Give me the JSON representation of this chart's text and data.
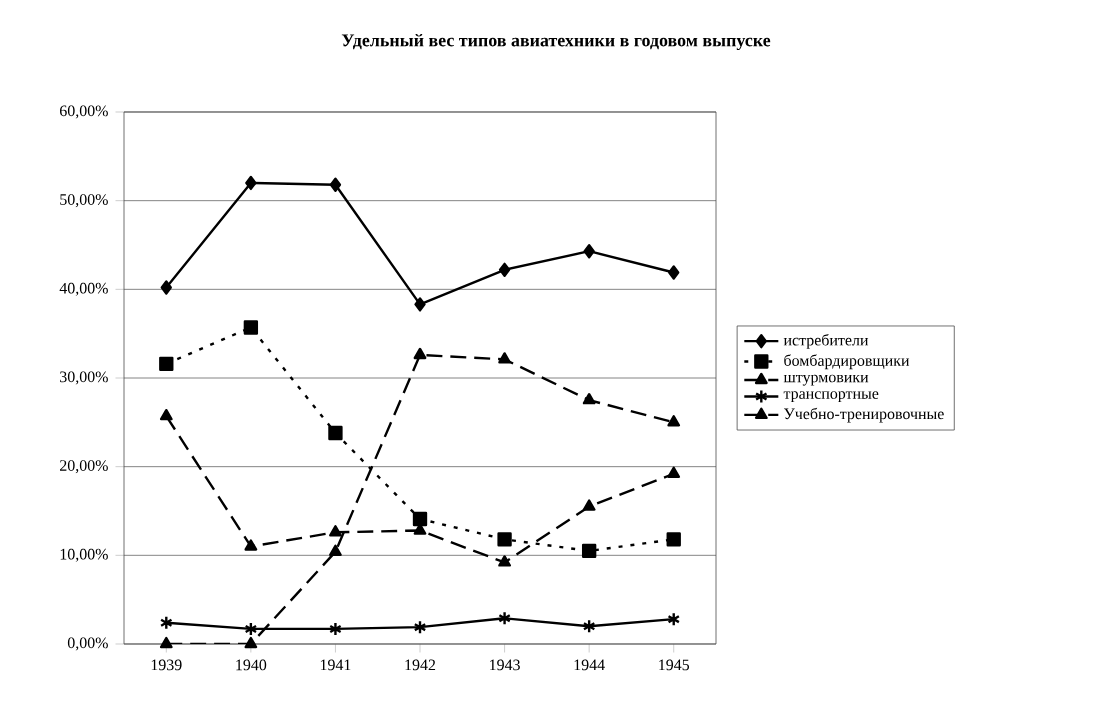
{
  "chart_data": {
    "type": "line",
    "title": "Удельный вес типов авиатехники в годовом выпуске",
    "categories": [
      "1939",
      "1940",
      "1941",
      "1942",
      "1943",
      "1944",
      "1945"
    ],
    "series": [
      {
        "name": "истребители",
        "color": "#000000",
        "marker": "diamond",
        "line_style": "solid",
        "values": [
          40.2,
          52,
          51.8,
          38.3,
          42.2,
          44.3,
          41.9
        ]
      },
      {
        "name": "бомбардировщики",
        "color": "#000000",
        "marker": "square",
        "line_style": "dotted",
        "values": [
          31.6,
          35.7,
          23.8,
          14.1,
          11.8,
          10.5,
          11.8
        ]
      },
      {
        "name": "штурмовики",
        "color": "#000000",
        "marker": "triangle",
        "line_style": "dashed",
        "values": [
          0,
          0,
          10.4,
          32.6,
          32.1,
          27.5,
          25
        ]
      },
      {
        "name": "транспортные",
        "color": "#000000",
        "marker": "cross",
        "line_style": "solid",
        "values": [
          2.4,
          1.7,
          1.7,
          1.9,
          2.9,
          2,
          2.8
        ]
      },
      {
        "name": "Учебно-тренировочные",
        "color": "#000000",
        "marker": "triangle",
        "line_style": "dashed",
        "values": [
          25.7,
          11,
          12.6,
          12.8,
          9.2,
          15.5,
          19.2
        ]
      }
    ],
    "ylim": [
      0,
      60
    ],
    "yticks": [
      {
        "value": 0,
        "label": "0,00%"
      },
      {
        "value": 10,
        "label": "10,00%"
      },
      {
        "value": 20,
        "label": "20,00%"
      },
      {
        "value": 30,
        "label": "30,00%"
      },
      {
        "value": 40,
        "label": "40,00%"
      },
      {
        "value": 50,
        "label": "50,00%"
      },
      {
        "value": 60,
        "label": "60,00%"
      }
    ],
    "grid": "y",
    "legend": "right"
  }
}
